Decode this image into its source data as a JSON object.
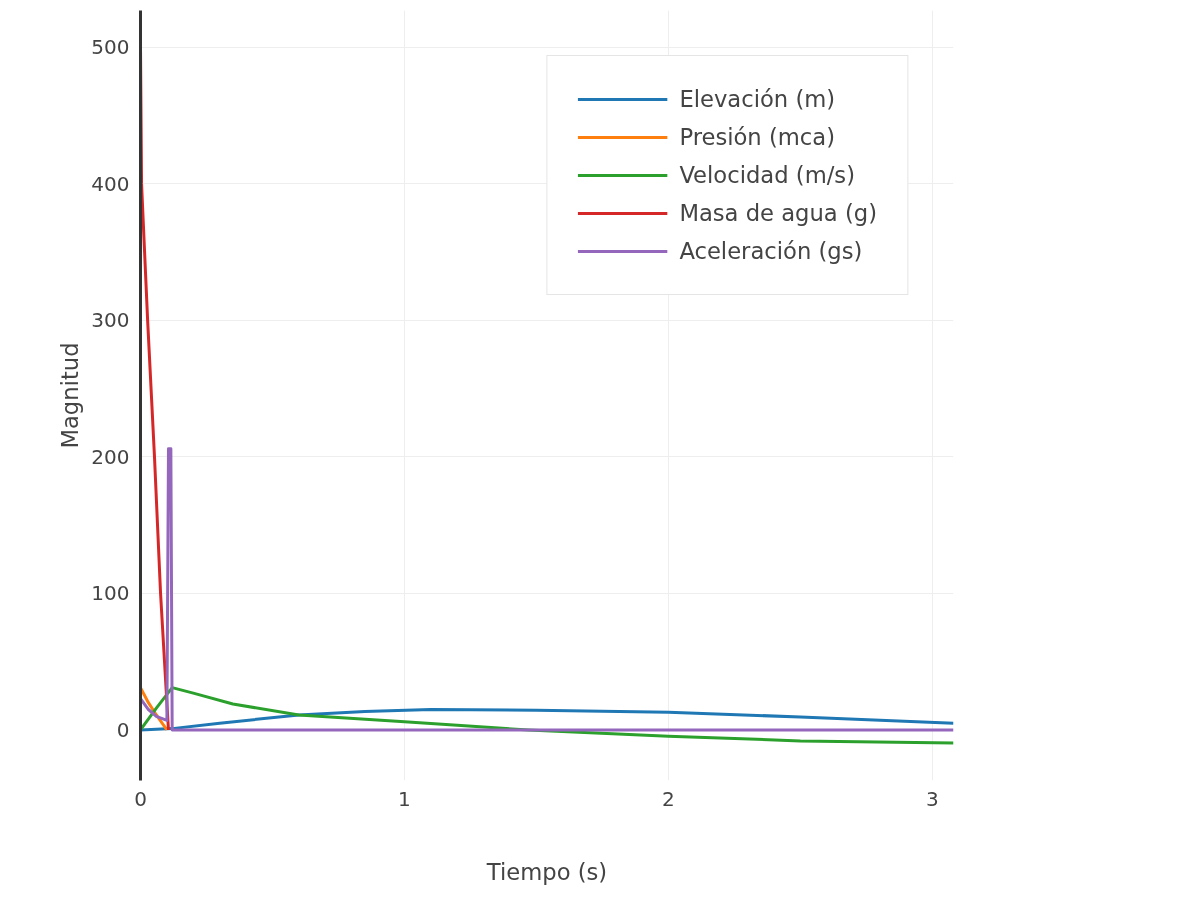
{
  "chart_data": {
    "type": "line",
    "xlabel": "Tiempo (s)",
    "ylabel": "Magnitud",
    "xlim": [
      0,
      3.08
    ],
    "ylim": [
      -37,
      527
    ],
    "xticks": [
      0,
      1,
      2,
      3
    ],
    "yticks": [
      0,
      100,
      200,
      300,
      400,
      500
    ],
    "grid": true,
    "legend": "top right",
    "marker": "none",
    "line_style": "solid",
    "series": [
      {
        "name": "Elevación (m)",
        "color": "#1f77b4",
        "x": [
          0,
          0.12,
          0.3,
          0.6,
          0.85,
          1.1,
          1.5,
          2.0,
          2.5,
          3.08
        ],
        "values": [
          0,
          1,
          5,
          11,
          13.5,
          15,
          14.5,
          13,
          9.5,
          5
        ]
      },
      {
        "name": "Presión (mca)",
        "color": "#ff7f0e",
        "x": [
          0,
          0.03,
          0.06,
          0.1
        ],
        "values": [
          31,
          20,
          11,
          0
        ]
      },
      {
        "name": "Velocidad (m/s)",
        "color": "#2ca02c",
        "x": [
          0,
          0.06,
          0.12,
          0.2,
          0.35,
          0.6,
          1.0,
          1.47,
          2.0,
          2.5,
          3.08
        ],
        "values": [
          0,
          16,
          31,
          27,
          19,
          11,
          6,
          0,
          -4.5,
          -8,
          -9.5
        ]
      },
      {
        "name": "Masa de agua (g)",
        "color": "#d62728",
        "x": [
          0,
          0.004,
          0.027,
          0.053,
          0.076,
          0.106
        ],
        "values": [
          500,
          400,
          300,
          200,
          100,
          0
        ]
      },
      {
        "name": "Aceleración (gs)",
        "color": "#9467bd",
        "x": [
          0,
          0.03,
          0.06,
          0.1,
          0.106,
          0.115,
          0.12,
          1,
          2,
          3.08
        ],
        "values": [
          23,
          15,
          10,
          7,
          206,
          206,
          0,
          0,
          0,
          0
        ]
      }
    ]
  }
}
